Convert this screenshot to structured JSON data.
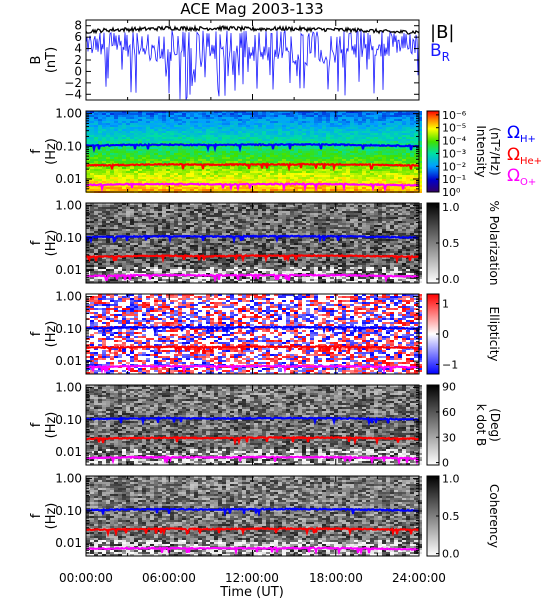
{
  "title": "ACE Mag 2003-133",
  "colors": {
    "b_total": "#000000",
    "b_r": "#1a1aff",
    "h_line": "#0000ff",
    "he_line": "#ff0000",
    "o_line": "#ff00ff"
  },
  "panels": [
    {
      "id": "b",
      "ylabel": "B",
      "yunit": "(nT)",
      "yticks": [
        "8",
        "6",
        "4",
        "2",
        "0",
        "−2",
        "−4"
      ]
    },
    {
      "id": "intensity",
      "ylabel": "f",
      "yunit": "(Hz)",
      "yticks": [
        "1.00",
        "0.10",
        "0.01"
      ],
      "cbar_label": "Intensity",
      "cbar_unit": "(nT²/Hz)",
      "cbar_ticks": [
        "10⁰",
        "10⁻¹",
        "10⁻²",
        "10⁻³",
        "10⁻⁴",
        "10⁻⁵",
        "10⁻⁶"
      ]
    },
    {
      "id": "polarization",
      "ylabel": "f",
      "yunit": "(Hz)",
      "yticks": [
        "1.00",
        "0.10",
        "0.01"
      ],
      "cbar_label": "% Polarization",
      "cbar_ticks": [
        "1.0",
        "0.5",
        "0.0"
      ]
    },
    {
      "id": "ellipticity",
      "ylabel": "f",
      "yunit": "(Hz)",
      "yticks": [
        "1.00",
        "0.10",
        "0.01"
      ],
      "cbar_label": "Ellipticity",
      "cbar_ticks": [
        "1",
        "0",
        "−1"
      ]
    },
    {
      "id": "kdotb",
      "ylabel": "f",
      "yunit": "(Hz)",
      "yticks": [
        "1.00",
        "0.10",
        "0.01"
      ],
      "cbar_label": "k dot B",
      "cbar_unit": "(Deg)",
      "cbar_ticks": [
        "90",
        "60",
        "30",
        "0"
      ]
    },
    {
      "id": "coherency",
      "ylabel": "f",
      "yunit": "(Hz)",
      "yticks": [
        "1.00",
        "0.10",
        "0.01"
      ],
      "cbar_label": "Coherency",
      "cbar_ticks": [
        "1.0",
        "0.5",
        "0.0"
      ]
    }
  ],
  "legend_b": [
    {
      "label": "|B|",
      "color": "#000000"
    },
    {
      "label": "B",
      "sub": "R",
      "color": "#1a1aff"
    }
  ],
  "legend_omega": [
    {
      "label": "Ω",
      "sub": "H+",
      "color": "#0000ff"
    },
    {
      "label": "Ω",
      "sub": "He+",
      "color": "#ff0000"
    },
    {
      "label": "Ω",
      "sub": "O+",
      "color": "#ff00ff"
    }
  ],
  "x_axis": {
    "label": "Time (UT)",
    "ticks": [
      "00:00:00",
      "06:00:00",
      "12:00:00",
      "18:00:00",
      "24:00:00"
    ]
  },
  "chart_data": [
    {
      "type": "line",
      "panel": "b",
      "x_unit": "hours UT",
      "ylabel": "B (nT)",
      "ylim": [
        -5,
        9
      ],
      "series": [
        {
          "name": "|B|",
          "x": [
            0,
            2,
            4,
            6,
            8,
            10,
            12,
            14,
            16,
            18,
            20,
            22,
            24
          ],
          "values": [
            7.0,
            7.3,
            7.4,
            7.6,
            7.5,
            7.6,
            7.4,
            7.5,
            7.4,
            7.3,
            7.2,
            6.9,
            6.9
          ]
        },
        {
          "name": "BR",
          "x": [
            0,
            2,
            4,
            6,
            8,
            10,
            12,
            14,
            16,
            18,
            20,
            22,
            24
          ],
          "values": [
            4.5,
            4.0,
            3.5,
            3.0,
            3.0,
            3.5,
            3.0,
            3.0,
            2.5,
            3.0,
            3.5,
            4.0,
            4.5
          ]
        }
      ]
    },
    {
      "type": "line",
      "panel": "ion-gyrofrequencies",
      "x_unit": "hours UT",
      "ylabel": "f (Hz)",
      "ylim": [
        0.004,
        1.2
      ],
      "log_y": true,
      "series": [
        {
          "name": "ΩH+",
          "x": [
            0,
            3,
            6,
            9,
            12,
            15,
            18,
            21,
            24
          ],
          "values": [
            0.105,
            0.11,
            0.112,
            0.11,
            0.112,
            0.113,
            0.112,
            0.107,
            0.102
          ]
        },
        {
          "name": "ΩHe+",
          "x": [
            0,
            3,
            6,
            9,
            12,
            15,
            18,
            21,
            24
          ],
          "values": [
            0.026,
            0.027,
            0.028,
            0.027,
            0.028,
            0.028,
            0.028,
            0.027,
            0.026
          ]
        },
        {
          "name": "ΩO+",
          "x": [
            0,
            3,
            6,
            9,
            12,
            15,
            18,
            21,
            24
          ],
          "values": [
            0.0066,
            0.0069,
            0.007,
            0.0069,
            0.007,
            0.007,
            0.007,
            0.0067,
            0.0064
          ]
        }
      ]
    }
  ]
}
